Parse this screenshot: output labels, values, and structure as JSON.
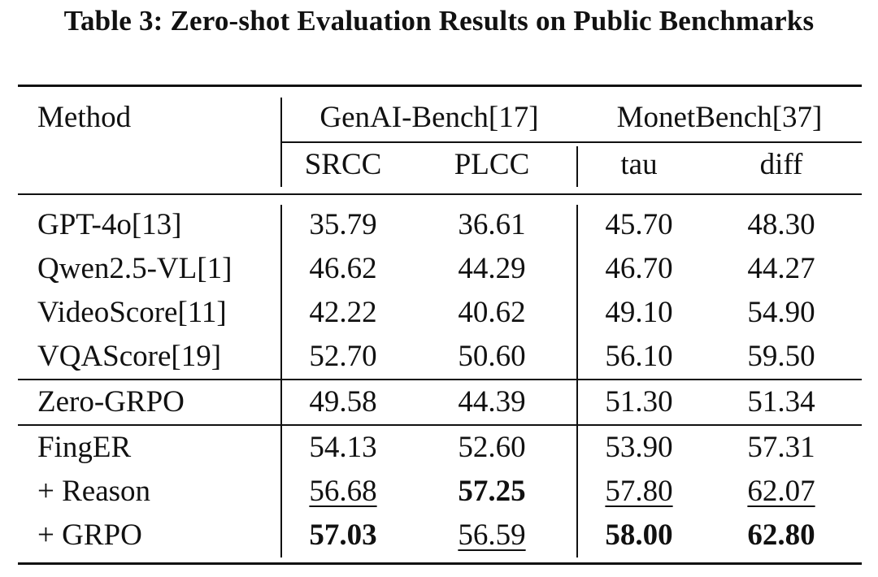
{
  "title": "Table 3: Zero-shot Evaluation Results on Public Benchmarks",
  "header": {
    "method": "Method",
    "group1": "GenAI-Bench[17]",
    "group2": "MonetBench[37]",
    "cols": [
      "SRCC",
      "PLCC",
      "tau",
      "diff"
    ]
  },
  "rows": [
    {
      "method": "GPT-4o[13]",
      "values": [
        "35.79",
        "36.61",
        "45.70",
        "48.30"
      ],
      "style": [
        "",
        "",
        "",
        ""
      ]
    },
    {
      "method": "Qwen2.5-VL[1]",
      "values": [
        "46.62",
        "44.29",
        "46.70",
        "44.27"
      ],
      "style": [
        "",
        "",
        "",
        ""
      ]
    },
    {
      "method": "VideoScore[11]",
      "values": [
        "42.22",
        "40.62",
        "49.10",
        "54.90"
      ],
      "style": [
        "",
        "",
        "",
        ""
      ]
    },
    {
      "method": "VQAScore[19]",
      "values": [
        "52.70",
        "50.60",
        "56.10",
        "59.50"
      ],
      "style": [
        "",
        "",
        "",
        ""
      ]
    },
    {
      "method": "Zero-GRPO",
      "values": [
        "49.58",
        "44.39",
        "51.30",
        "51.34"
      ],
      "style": [
        "",
        "",
        "",
        ""
      ]
    },
    {
      "method": "FingER",
      "values": [
        "54.13",
        "52.60",
        "53.90",
        "57.31"
      ],
      "style": [
        "",
        "",
        "",
        ""
      ]
    },
    {
      "method": "+ Reason",
      "values": [
        "56.68",
        "57.25",
        "57.80",
        "62.07"
      ],
      "style": [
        "underline",
        "bold",
        "underline",
        "underline"
      ]
    },
    {
      "method": "+ GRPO",
      "values": [
        "57.03",
        "56.59",
        "58.00",
        "62.80"
      ],
      "style": [
        "bold",
        "underline",
        "bold",
        "bold"
      ]
    }
  ]
}
